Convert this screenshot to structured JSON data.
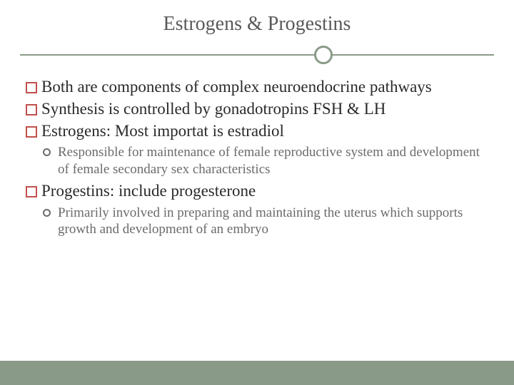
{
  "slide": {
    "title": "Estrogens & Progestins",
    "colors": {
      "title_text": "#595959",
      "divider": "#8a9a88",
      "footer": "#8a9a88",
      "bullet_square_border": "#c0504d",
      "bullet_circle_border": "#6b6b6b",
      "body_text": "#2a2a2a",
      "sub_text": "#6b6b6b",
      "background": "#ffffff"
    },
    "bullets": [
      {
        "level": 1,
        "text": "Both are components of complex neuroendocrine pathways"
      },
      {
        "level": 1,
        "text": "Synthesis is controlled by gonadotropins FSH & LH"
      },
      {
        "level": 1,
        "text": "Estrogens: Most importat is estradiol"
      },
      {
        "level": 2,
        "text": "Responsible for maintenance of female reproductive system and development of female secondary sex characteristics"
      },
      {
        "level": 1,
        "text": "Progestins: include progesterone"
      },
      {
        "level": 2,
        "text": "Primarily involved in preparing and maintaining the uterus which supports growth and development of an embryo"
      }
    ]
  }
}
